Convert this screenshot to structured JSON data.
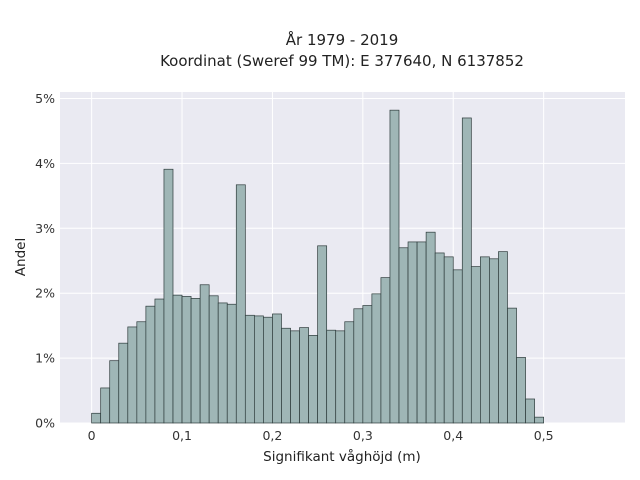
{
  "chart_data": {
    "type": "bar",
    "title_line1": "År 1979 - 2019",
    "title_line2": "Koordinat (Sweref 99 TM): E 377640, N 6137852",
    "xlabel": "Signifikant våghöjd (m)",
    "ylabel": "Andel",
    "xlim": [
      -0.035,
      0.59
    ],
    "ylim": [
      0,
      5.1
    ],
    "x_ticks": [
      0,
      0.1,
      0.2,
      0.3,
      0.4,
      0.5
    ],
    "x_tick_labels": [
      "0",
      "0,1",
      "0,2",
      "0,3",
      "0,4",
      "0,5"
    ],
    "y_ticks": [
      0,
      1,
      2,
      3,
      4,
      5
    ],
    "y_tick_labels": [
      "0%",
      "1%",
      "2%",
      "3%",
      "4%",
      "5%"
    ],
    "grid": true,
    "bin_start": 0,
    "bin_width": 0.01,
    "values": [
      0.15,
      0.54,
      0.96,
      1.23,
      1.48,
      1.56,
      1.8,
      1.91,
      3.91,
      1.97,
      1.95,
      1.92,
      2.13,
      1.96,
      1.85,
      1.83,
      3.67,
      1.66,
      1.65,
      1.63,
      1.68,
      1.46,
      1.42,
      1.47,
      1.35,
      2.73,
      1.43,
      1.42,
      1.56,
      1.76,
      1.81,
      1.99,
      2.24,
      4.82,
      2.7,
      2.79,
      2.79,
      2.94,
      2.62,
      2.56,
      2.36,
      4.7,
      2.41,
      2.56,
      2.53,
      2.64,
      1.77,
      1.01,
      0.37,
      0.09
    ],
    "colors": {
      "bar_fill": "#9fb6b6",
      "bar_stroke": "#2d3b3b",
      "plot_background": "#eaeaf2",
      "grid": "#ffffff"
    }
  }
}
